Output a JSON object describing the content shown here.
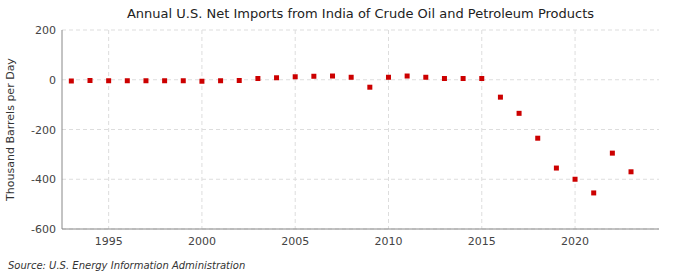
{
  "chart_data": {
    "type": "scatter",
    "title": "Annual U.S. Net Imports from India of Crude Oil and Petroleum Products",
    "ylabel": "Thousand Barrels per Day",
    "annotation": "Source: U.S. Energy Information Administration",
    "x": [
      1993,
      1994,
      1995,
      1996,
      1997,
      1998,
      1999,
      2000,
      2001,
      2002,
      2003,
      2004,
      2005,
      2006,
      2007,
      2008,
      2009,
      2010,
      2011,
      2012,
      2013,
      2014,
      2015,
      2016,
      2017,
      2018,
      2019,
      2020,
      2021,
      2022,
      2023
    ],
    "values": [
      -5,
      -3,
      -4,
      -4,
      -4,
      -4,
      -4,
      -6,
      -4,
      -3,
      5,
      8,
      12,
      14,
      15,
      10,
      -30,
      10,
      15,
      10,
      5,
      5,
      5,
      -70,
      -135,
      -235,
      -355,
      -400,
      -455,
      -295,
      -370
    ],
    "color": "#cc0000",
    "marker": "square",
    "xlim": [
      1992.5,
      2024.5
    ],
    "xticks": [
      1995,
      2000,
      2005,
      2010,
      2015,
      2020
    ],
    "ylim": [
      -600,
      200
    ],
    "yticks": [
      -600,
      -400,
      -200,
      0,
      200
    ],
    "grid": true
  }
}
